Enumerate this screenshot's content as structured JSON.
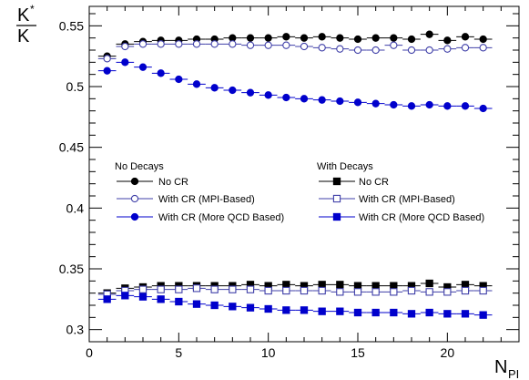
{
  "chart_data": {
    "type": "scatter",
    "ylabel_num": "K",
    "ylabel_sup": "*",
    "ylabel_den": "K",
    "xlabel_main": "N",
    "xlabel_sub": "PI",
    "xlim": [
      0,
      24
    ],
    "ylim": [
      0.29,
      0.566
    ],
    "x_ticks": [
      0,
      5,
      10,
      15,
      20
    ],
    "y_ticks": [
      0.3,
      0.35,
      0.4,
      0.45,
      0.5,
      0.55
    ],
    "grid": false,
    "x": [
      1,
      2,
      3,
      4,
      5,
      6,
      7,
      8,
      9,
      10,
      11,
      12,
      13,
      14,
      15,
      16,
      17,
      18,
      19,
      20,
      21,
      22
    ],
    "legend_left_title": "No Decays",
    "legend_right_title": "With Decays",
    "series": [
      {
        "name": "No CR",
        "group": "No Decays",
        "marker": "circle",
        "filled": true,
        "color": "#000000",
        "values": [
          0.525,
          0.535,
          0.537,
          0.538,
          0.538,
          0.539,
          0.539,
          0.54,
          0.54,
          0.54,
          0.541,
          0.54,
          0.541,
          0.54,
          0.539,
          0.54,
          0.54,
          0.539,
          0.543,
          0.538,
          0.541,
          0.539
        ]
      },
      {
        "name": "With CR (MPI-Based)",
        "group": "No Decays",
        "marker": "circle",
        "filled": false,
        "color": "#3f3fa8",
        "values": [
          0.523,
          0.533,
          0.535,
          0.535,
          0.535,
          0.535,
          0.535,
          0.535,
          0.534,
          0.534,
          0.534,
          0.533,
          0.532,
          0.531,
          0.53,
          0.53,
          0.534,
          0.53,
          0.53,
          0.531,
          0.532,
          0.532
        ]
      },
      {
        "name": "With CR (More QCD Based)",
        "group": "No Decays",
        "marker": "circle",
        "filled": true,
        "color": "#0000cc",
        "values": [
          0.513,
          0.52,
          0.516,
          0.511,
          0.506,
          0.502,
          0.499,
          0.497,
          0.495,
          0.493,
          0.491,
          0.49,
          0.489,
          0.488,
          0.487,
          0.486,
          0.485,
          0.484,
          0.485,
          0.484,
          0.484,
          0.482
        ]
      },
      {
        "name": "No CR",
        "group": "With Decays",
        "marker": "square",
        "filled": true,
        "color": "#000000",
        "values": [
          0.33,
          0.334,
          0.335,
          0.336,
          0.336,
          0.336,
          0.336,
          0.336,
          0.337,
          0.336,
          0.337,
          0.336,
          0.337,
          0.337,
          0.336,
          0.336,
          0.336,
          0.336,
          0.338,
          0.335,
          0.337,
          0.336
        ]
      },
      {
        "name": "With CR (MPI-Based)",
        "group": "With Decays",
        "marker": "square",
        "filled": false,
        "color": "#3f3fa8",
        "values": [
          0.329,
          0.332,
          0.333,
          0.333,
          0.333,
          0.334,
          0.333,
          0.333,
          0.333,
          0.332,
          0.332,
          0.332,
          0.332,
          0.331,
          0.331,
          0.331,
          0.331,
          0.332,
          0.331,
          0.331,
          0.332,
          0.332
        ]
      },
      {
        "name": "With CR (More QCD Based)",
        "group": "With Decays",
        "marker": "square",
        "filled": true,
        "color": "#0000cc",
        "values": [
          0.325,
          0.328,
          0.327,
          0.325,
          0.323,
          0.321,
          0.32,
          0.319,
          0.318,
          0.317,
          0.316,
          0.316,
          0.315,
          0.315,
          0.314,
          0.314,
          0.314,
          0.313,
          0.314,
          0.313,
          0.313,
          0.312
        ]
      }
    ]
  }
}
